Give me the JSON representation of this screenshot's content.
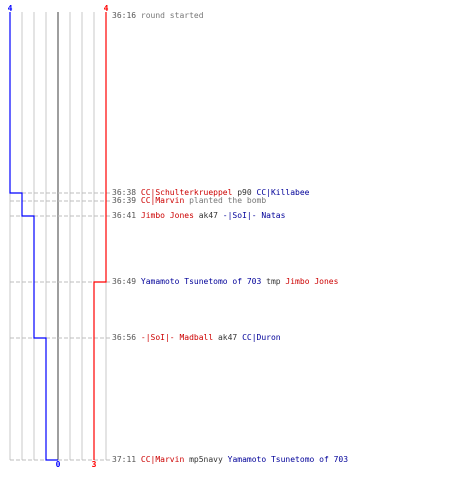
{
  "colors": {
    "team_red": "#ff0000",
    "team_blue": "#0000ff",
    "grid": "#c8c8c8",
    "axis": "#7f7f7f",
    "text_red": "#cc0000",
    "text_blue": "#000099"
  },
  "chart_data": {
    "type": "line",
    "xlabel": "",
    "ylabel": "",
    "lanes": [
      0,
      1,
      2,
      3,
      4
    ],
    "xlim": [
      0,
      4
    ],
    "time_range": [
      "36:16",
      "37:11"
    ],
    "series": [
      {
        "team": "blue",
        "start_label": "4",
        "end_label": "0",
        "steps": [
          {
            "time": "36:16",
            "alive": 4
          },
          {
            "time": "36:38",
            "alive": 3
          },
          {
            "time": "36:41",
            "alive": 2
          },
          {
            "time": "36:56",
            "alive": 1
          },
          {
            "time": "37:11",
            "alive": 0
          }
        ]
      },
      {
        "team": "red",
        "start_label": "4",
        "end_label": "3",
        "steps": [
          {
            "time": "36:16",
            "alive": 4
          },
          {
            "time": "36:49",
            "alive": 3
          },
          {
            "time": "37:11",
            "alive": 3
          }
        ]
      }
    ]
  },
  "events": [
    {
      "time": "36:16",
      "parts": [
        {
          "text": "round started",
          "cls": "t-gray"
        }
      ]
    },
    {
      "time": "36:38",
      "parts": [
        {
          "text": "CC|Schulterkrueppel",
          "cls": "t-red"
        },
        {
          "text": " p90 ",
          "cls": "t-dark"
        },
        {
          "text": "CC|Killabee",
          "cls": "t-blue"
        }
      ]
    },
    {
      "time": "36:39",
      "parts": [
        {
          "text": "CC|Marvin",
          "cls": "t-red"
        },
        {
          "text": " planted the bomb",
          "cls": "t-gray"
        }
      ]
    },
    {
      "time": "36:41",
      "parts": [
        {
          "text": "Jimbo Jones",
          "cls": "t-red"
        },
        {
          "text": " ak47 ",
          "cls": "t-dark"
        },
        {
          "text": "-|SoI|- Natas",
          "cls": "t-blue"
        }
      ]
    },
    {
      "time": "36:49",
      "parts": [
        {
          "text": "Yamamoto Tsunetomo of 703",
          "cls": "t-blue"
        },
        {
          "text": " tmp ",
          "cls": "t-dark"
        },
        {
          "text": "Jimbo Jones",
          "cls": "t-red"
        }
      ]
    },
    {
      "time": "36:56",
      "parts": [
        {
          "text": "-|SoI|- Madball",
          "cls": "t-red"
        },
        {
          "text": " ak47 ",
          "cls": "t-dark"
        },
        {
          "text": "CC|Duron",
          "cls": "t-blue"
        }
      ]
    },
    {
      "time": "37:11",
      "parts": [
        {
          "text": "CC|Marvin",
          "cls": "t-red"
        },
        {
          "text": " mp5navy ",
          "cls": "t-dark"
        },
        {
          "text": "Yamamoto Tsunetomo of 703",
          "cls": "t-blue"
        }
      ]
    }
  ]
}
